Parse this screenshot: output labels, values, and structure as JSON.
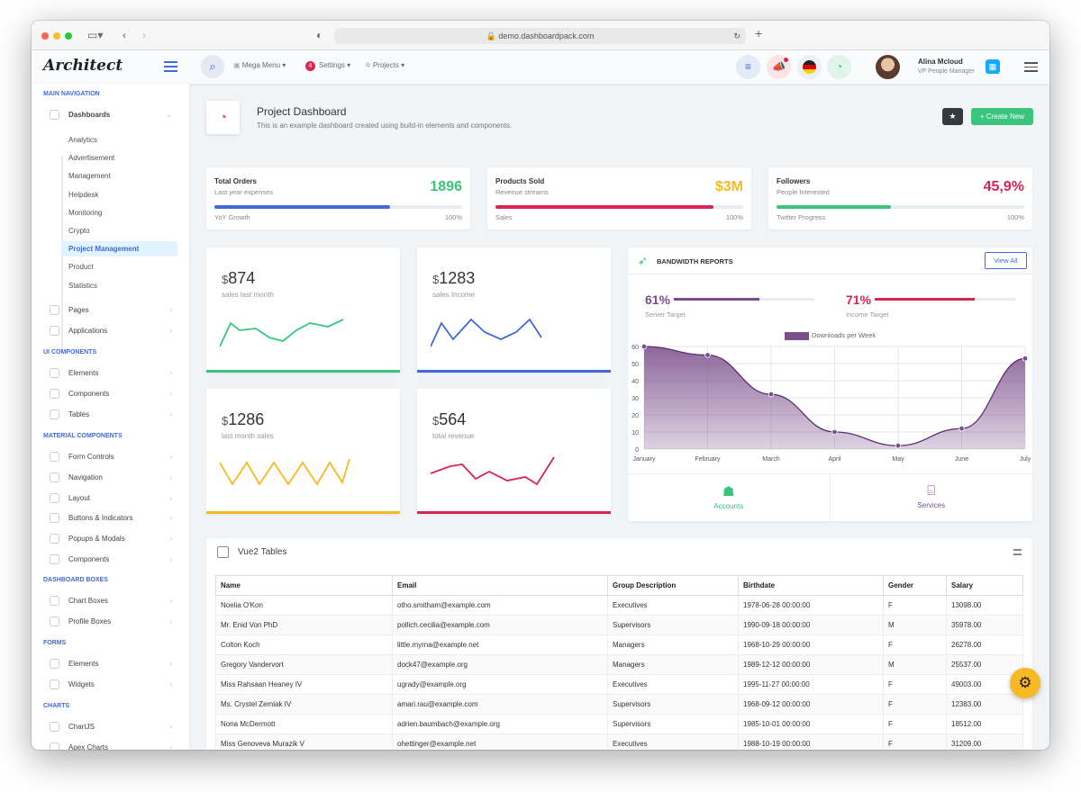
{
  "browser": {
    "url": "demo.dashboardpack.com"
  },
  "header": {
    "logo": "Architect",
    "nav": [
      "Mega Menu",
      "Settings",
      "Projects"
    ],
    "settings_badge": "4",
    "user_name": "Alina Mcloud",
    "user_role": "VP People Manager"
  },
  "sidebar": {
    "sec_main": "Main Navigation",
    "dashboards": "Dashboards",
    "sub": [
      "Analytics",
      "Advertisement",
      "Management",
      "Helpdesk",
      "Monitoring",
      "Crypto",
      "Project Management",
      "Product",
      "Statistics"
    ],
    "pages": "Pages",
    "applications": "Applications",
    "sec_ui": "UI Components",
    "ui": [
      "Elements",
      "Components",
      "Tables"
    ],
    "sec_mat": "Material Components",
    "mat": [
      "Form Controls",
      "Navigation",
      "Layout",
      "Buttons & Indicators",
      "Popups & Modals",
      "Components"
    ],
    "sec_dash": "Dashboard Boxes",
    "dash": [
      "Chart Boxes",
      "Profile Boxes"
    ],
    "sec_forms": "Forms",
    "forms": [
      "Elements",
      "Widgets"
    ],
    "sec_charts": "Charts",
    "charts": [
      "ChartJS",
      "Apex Charts"
    ]
  },
  "page": {
    "title": "Project Dashboard",
    "subtitle": "This is an example dashboard created using build-in elements and components.",
    "create_label": "Create New"
  },
  "widgets": [
    {
      "title": "Total Orders",
      "sub": "Last year expenses",
      "value": "1896",
      "color": "#3ac47d",
      "bar_color": "#3f6ad8",
      "progress": 0.71,
      "left": "YoY Growth",
      "right": "100%"
    },
    {
      "title": "Products Sold",
      "sub": "Revenue streams",
      "value": "$3M",
      "color": "#f7b924",
      "bar_color": "#d92550",
      "progress": 0.88,
      "left": "Sales",
      "right": "100%"
    },
    {
      "title": "Followers",
      "sub": "People Interested",
      "value": "45,9%",
      "color": "#d92550",
      "bar_color": "#3ac47d",
      "progress": 0.46,
      "left": "Twitter Progress",
      "right": "100%"
    }
  ],
  "minis": [
    {
      "currency": "$",
      "value": "874",
      "label": "sales last month",
      "color": "#3ac47d"
    },
    {
      "currency": "$",
      "value": "1283",
      "label": "sales Income",
      "color": "#3f6ad8"
    },
    {
      "currency": "$",
      "value": "1286",
      "label": "last month sales",
      "color": "#f7b924"
    },
    {
      "currency": "$",
      "value": "564",
      "label": "total revenue",
      "color": "#d92550"
    }
  ],
  "bandwidth": {
    "title": "Bandwidth Reports",
    "view_all": "View All",
    "t1_value": "61%",
    "t1_label": "Server Target",
    "t1_color": "#794c8a",
    "t1_progress": 0.61,
    "t2_value": "71%",
    "t2_label": "Income Target",
    "t2_color": "#d92550",
    "t2_progress": 0.71,
    "accounts": "Accounts",
    "services": "Services"
  },
  "chart_data": {
    "type": "area",
    "series": [
      {
        "name": "Downloads per Week",
        "values": [
          60,
          55,
          32,
          10,
          2,
          12,
          53
        ]
      }
    ],
    "categories": [
      "January",
      "February",
      "March",
      "April",
      "May",
      "June",
      "July"
    ],
    "ylim": [
      0,
      60
    ],
    "yticks": [
      0,
      10,
      20,
      30,
      40,
      50,
      60
    ],
    "grid": true,
    "legend": "top",
    "color": "#794c8a"
  },
  "table": {
    "title": "Vue2 Tables",
    "headers": [
      "Name",
      "Email",
      "Group Description",
      "Birthdate",
      "Gender",
      "Salary"
    ],
    "rows": [
      [
        "Noelia O'Kon",
        "otho.smitham@example.com",
        "Executives",
        "1978-06-28 00:00:00",
        "F",
        "13098.00"
      ],
      [
        "Mr. Enid Von PhD",
        "pollich.cecilia@example.com",
        "Supervisors",
        "1990-09-18 00:00:00",
        "M",
        "35978.00"
      ],
      [
        "Colton Koch",
        "little.myrna@example.net",
        "Managers",
        "1968-10-29 00:00:00",
        "F",
        "26278.00"
      ],
      [
        "Gregory Vandervort",
        "dock47@example.org",
        "Managers",
        "1989-12-12 00:00:00",
        "M",
        "25537.00"
      ],
      [
        "Miss Rahsaan Heaney IV",
        "ugrady@example.org",
        "Executives",
        "1995-11-27 00:00:00",
        "F",
        "49003.00"
      ],
      [
        "Ms. Crystel Zemlak IV",
        "amari.rau@example.com",
        "Supervisors",
        "1968-09-12 00:00:00",
        "F",
        "12383.00"
      ],
      [
        "Nona McDermott",
        "adrien.baumbach@example.org",
        "Supervisors",
        "1985-10-01 00:00:00",
        "F",
        "18512.00"
      ],
      [
        "Miss Genoveva Murazik V",
        "ohettinger@example.net",
        "Executives",
        "1988-10-19 00:00:00",
        "F",
        "31209.00"
      ]
    ]
  }
}
